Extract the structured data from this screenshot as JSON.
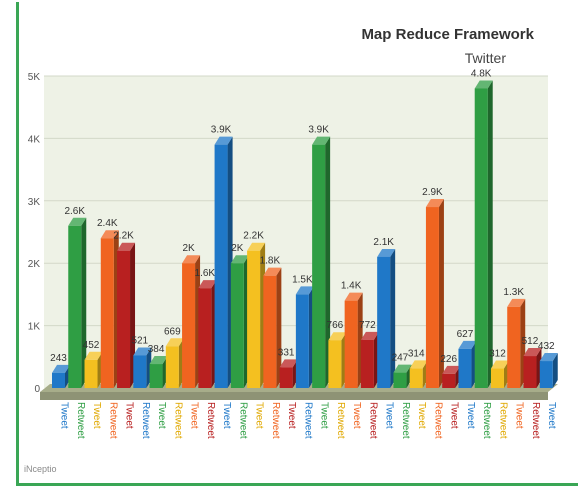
{
  "chart_data": {
    "type": "bar",
    "title": "Map Reduce Framework",
    "subtitle": "Twitter",
    "credit": "iNceptio",
    "three_d": true,
    "grid": true,
    "ylim": [
      0,
      5000
    ],
    "y_ticks": [
      "0",
      "1K",
      "2K",
      "3K",
      "4K",
      "5K"
    ],
    "colors": {
      "Tweet": "#1f78c8",
      "Retweet-green": "#2f9e44",
      "Tweet-yellow": "#f4c020",
      "Retweet-orange": "#f06420",
      "Retweet-red": "#b82020",
      "plot_bg": "#eef2e6",
      "floor": "#a7ad8a"
    },
    "bars": [
      {
        "category": "Tweet",
        "value": 243,
        "label": "243",
        "color": "#1f78c8"
      },
      {
        "category": "Retweet",
        "value": 2600,
        "label": "2.6K",
        "color": "#2f9e44"
      },
      {
        "category": "Tweet",
        "value": 452,
        "label": "452",
        "color": "#f4c020"
      },
      {
        "category": "Retweet",
        "value": 2400,
        "label": "2.4K",
        "color": "#f06420"
      },
      {
        "category": "Tweet",
        "value": 2200,
        "label": "2.2K",
        "color": "#b82020"
      },
      {
        "category": "Retweet",
        "value": 521,
        "label": "521",
        "color": "#1f78c8"
      },
      {
        "category": "Tweet",
        "value": 384,
        "label": "384",
        "color": "#2f9e44"
      },
      {
        "category": "Retweet",
        "value": 669,
        "label": "669",
        "color": "#f4c020"
      },
      {
        "category": "Tweet",
        "value": 2000,
        "label": "2K",
        "color": "#f06420"
      },
      {
        "category": "Retweet",
        "value": 1600,
        "label": "1.6K",
        "color": "#b82020"
      },
      {
        "category": "Tweet",
        "value": 3900,
        "label": "3.9K",
        "color": "#1f78c8"
      },
      {
        "category": "Retweet",
        "value": 2000,
        "label": "2K",
        "color": "#2f9e44"
      },
      {
        "category": "Tweet",
        "value": 2200,
        "label": "2.2K",
        "color": "#f4c020"
      },
      {
        "category": "Retweet",
        "value": 1800,
        "label": "1.8K",
        "color": "#f06420"
      },
      {
        "category": "Tweet",
        "value": 331,
        "label": "331",
        "color": "#b82020"
      },
      {
        "category": "Retweet",
        "value": 1500,
        "label": "1.5K",
        "color": "#1f78c8"
      },
      {
        "category": "Tweet",
        "value": 3900,
        "label": "3.9K",
        "color": "#2f9e44"
      },
      {
        "category": "Retweet",
        "value": 766,
        "label": "766",
        "color": "#f4c020"
      },
      {
        "category": "Tweet",
        "value": 1400,
        "label": "1.4K",
        "color": "#f06420"
      },
      {
        "category": "Retweet",
        "value": 772,
        "label": "772",
        "color": "#b82020"
      },
      {
        "category": "Tweet",
        "value": 2100,
        "label": "2.1K",
        "color": "#1f78c8"
      },
      {
        "category": "Retweet",
        "value": 247,
        "label": "247",
        "color": "#2f9e44"
      },
      {
        "category": "Tweet",
        "value": 314,
        "label": "314",
        "color": "#f4c020"
      },
      {
        "category": "Retweet",
        "value": 2900,
        "label": "2.9K",
        "color": "#f06420"
      },
      {
        "category": "Tweet",
        "value": 226,
        "label": "226",
        "color": "#b82020"
      },
      {
        "category": "Tweet",
        "value": 627,
        "label": "627",
        "color": "#1f78c8"
      },
      {
        "category": "Retweet",
        "value": 4800,
        "label": "4.8K",
        "color": "#2f9e44"
      },
      {
        "category": "Retweet",
        "value": 312,
        "label": "312",
        "color": "#f4c020"
      },
      {
        "category": "Tweet",
        "value": 1300,
        "label": "1.3K",
        "color": "#f06420"
      },
      {
        "category": "Retweet",
        "value": 512,
        "label": "512",
        "color": "#b82020"
      },
      {
        "category": "Tweet",
        "value": 432,
        "label": "432",
        "color": "#1f78c8"
      }
    ]
  }
}
